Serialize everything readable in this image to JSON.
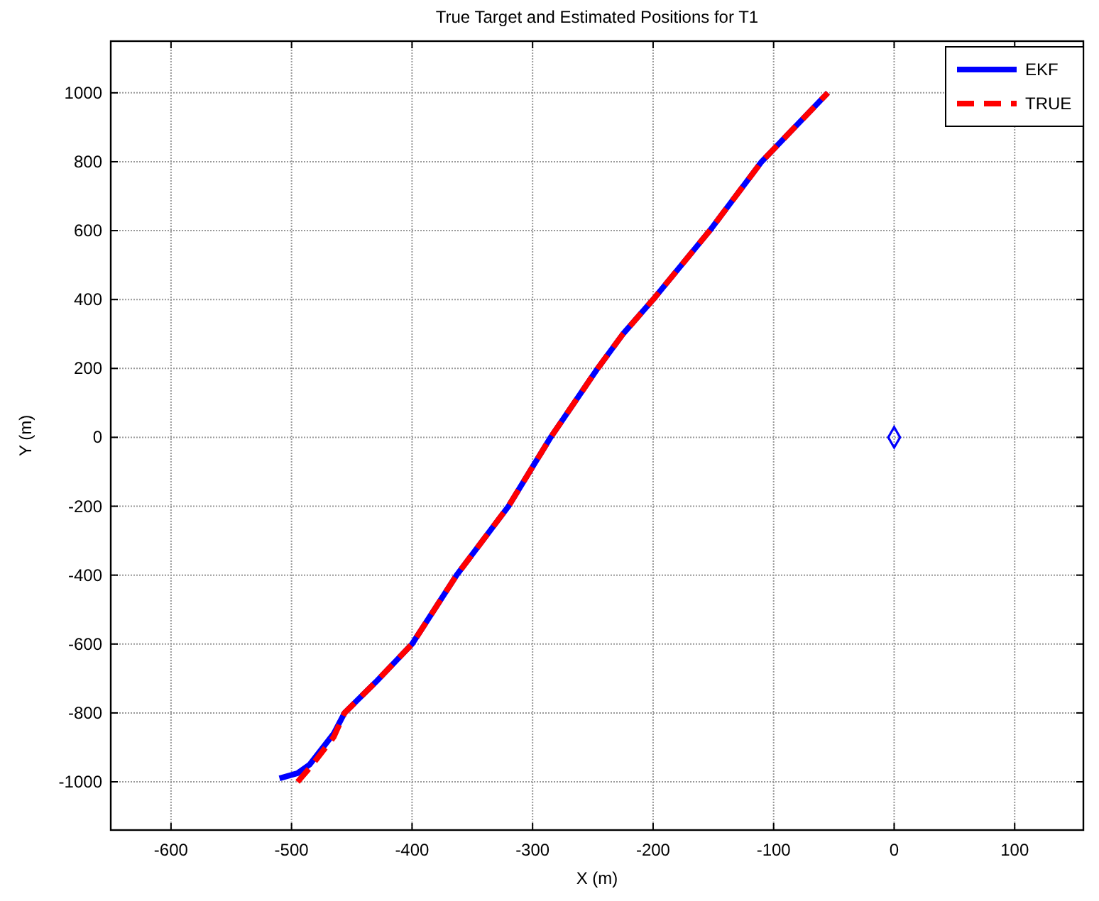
{
  "chart_data": {
    "type": "line",
    "title": "True Target and Estimated Positions for T1",
    "xlabel": "X (m)",
    "ylabel": "Y (m)",
    "xlim": [
      -650,
      157
    ],
    "ylim": [
      -1140,
      1150
    ],
    "xticks": [
      -600,
      -500,
      -400,
      -300,
      -200,
      -100,
      0,
      100
    ],
    "yticks": [
      -1000,
      -800,
      -600,
      -400,
      -200,
      0,
      200,
      400,
      600,
      800,
      1000
    ],
    "grid": true,
    "legend": "top right",
    "series": [
      {
        "name": "EKF",
        "color": "#0000ff",
        "line_style": "solid",
        "x": [
          -510,
          -495,
          -485,
          -465,
          -456,
          -430,
          -400,
          -363,
          -320,
          -285,
          -246,
          -225,
          -200,
          -153,
          -110,
          -55
        ],
        "values": [
          -990,
          -975,
          -950,
          -860,
          -800,
          -710,
          -600,
          -400,
          -200,
          0,
          200,
          300,
          400,
          600,
          800,
          1000
        ]
      },
      {
        "name": "TRUE",
        "color": "#ff0000",
        "line_style": "dashed",
        "x": [
          -495,
          -485,
          -465,
          -456,
          -430,
          -400,
          -363,
          -320,
          -285,
          -246,
          -225,
          -200,
          -153,
          -110,
          -55
        ],
        "values": [
          -1000,
          -960,
          -870,
          -800,
          -710,
          -600,
          -400,
          -200,
          0,
          200,
          300,
          400,
          600,
          800,
          1000
        ]
      },
      {
        "type": "scatter",
        "color": "#0000ff",
        "marker": "diamond",
        "x": [
          0
        ],
        "values": [
          0
        ]
      }
    ]
  }
}
